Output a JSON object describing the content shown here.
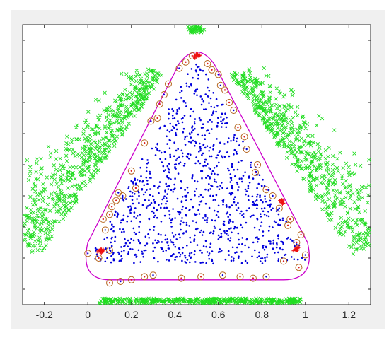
{
  "window": {
    "background": "#f0f0f0",
    "axes_background": "#ffffff"
  },
  "chart_data": {
    "type": "scatter",
    "title": "",
    "xlabel": "",
    "ylabel": "",
    "xlim": [
      -0.3,
      1.3
    ],
    "ylim": [
      -0.2,
      1.6
    ],
    "x_ticks": [
      -0.2,
      0,
      0.2,
      0.4,
      0.6,
      0.8,
      1,
      1.2
    ],
    "x_tick_labels": [
      "-0.2",
      "0",
      "0.2",
      "0.4",
      "0.6",
      "0.8",
      "1",
      "1.2"
    ],
    "y_ticks": [
      -0.1,
      0.1,
      0.3,
      0.5,
      0.7,
      0.9,
      1.1,
      1.3,
      1.5
    ],
    "y_tick_labels": [],
    "grid": false,
    "legend": "none",
    "series": [
      {
        "marker": "point",
        "color": "#0000dd",
        "region": "inside triangle",
        "approx_count": 1000
      },
      {
        "marker": "x",
        "color": "#22dd22",
        "region": "outside triangle (three flanking bands)",
        "approx_count": 2000
      },
      {
        "marker": "circle",
        "color": "#b5651d",
        "region": "on boundary (support vectors)",
        "points": [
          [
            0.0,
            0.13
          ],
          [
            0.05,
            0.1
          ],
          [
            0.1,
            0.15
          ],
          [
            0.08,
            0.28
          ],
          [
            0.1,
            0.38
          ],
          [
            0.13,
            0.47
          ],
          [
            0.14,
            0.52
          ],
          [
            0.2,
            0.66
          ],
          [
            0.26,
            0.84
          ],
          [
            0.29,
            0.98
          ],
          [
            0.33,
            1.09
          ],
          [
            0.37,
            1.22
          ],
          [
            0.42,
            1.32
          ],
          [
            0.48,
            1.4
          ],
          [
            0.55,
            1.35
          ],
          [
            0.61,
            1.21
          ],
          [
            0.65,
            1.1
          ],
          [
            0.69,
            0.94
          ],
          [
            0.73,
            0.8
          ],
          [
            0.77,
            0.65
          ],
          [
            0.82,
            0.54
          ],
          [
            0.88,
            0.42
          ],
          [
            0.92,
            0.31
          ],
          [
            0.96,
            0.2
          ],
          [
            1.0,
            0.12
          ],
          [
            0.97,
            0.04
          ],
          [
            0.9,
            0.08
          ],
          [
            0.82,
            -0.02
          ],
          [
            0.76,
            -0.03
          ],
          [
            0.7,
            -0.02
          ],
          [
            0.62,
            -0.01
          ],
          [
            0.52,
            -0.02
          ],
          [
            0.43,
            -0.03
          ],
          [
            0.3,
            -0.01
          ],
          [
            0.26,
            -0.02
          ],
          [
            0.2,
            -0.04
          ],
          [
            0.15,
            -0.05
          ],
          [
            0.1,
            -0.06
          ],
          [
            0.22,
            0.55
          ],
          [
            0.16,
            0.5
          ],
          [
            0.11,
            0.43
          ],
          [
            0.07,
            0.35
          ],
          [
            0.35,
            1.15
          ],
          [
            0.32,
            1.0
          ],
          [
            0.63,
            1.18
          ],
          [
            0.6,
            1.28
          ],
          [
            0.57,
            1.31
          ],
          [
            0.45,
            1.36
          ],
          [
            0.67,
            1.05
          ],
          [
            0.72,
            0.88
          ],
          [
            0.78,
            0.7
          ],
          [
            0.85,
            0.5
          ],
          [
            0.93,
            0.35
          ],
          [
            0.98,
            0.25
          ]
        ]
      },
      {
        "marker": "plus",
        "color": "#ee1111",
        "region": "clusters at triangle vertices",
        "clusters": [
          [
            0.5,
            1.4
          ],
          [
            0.06,
            0.15
          ],
          [
            0.96,
            0.16
          ],
          [
            0.89,
            0.46
          ]
        ]
      }
    ],
    "decision_boundary": {
      "color": "#cc00cc",
      "shape": "rounded triangle",
      "vertices": [
        [
          0.0,
          0.13
        ],
        [
          0.5,
          1.44
        ],
        [
          1.02,
          0.12
        ]
      ],
      "bottom_y": -0.04
    }
  }
}
